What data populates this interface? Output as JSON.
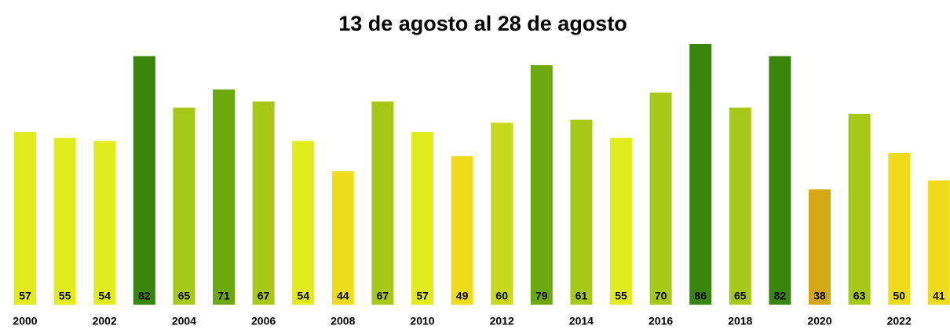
{
  "chart_data": {
    "type": "bar",
    "title": "13 de agosto al 28 de agosto",
    "categories": [
      "2000",
      null,
      "2002",
      null,
      "2004",
      null,
      "2006",
      null,
      "2008",
      null,
      "2010",
      null,
      "2012",
      null,
      "2014",
      null,
      "2016",
      null,
      "2018",
      null,
      "2020",
      null,
      "2022",
      null
    ],
    "values": [
      57,
      55,
      54,
      82,
      65,
      71,
      67,
      54,
      44,
      67,
      57,
      49,
      60,
      79,
      61,
      55,
      70,
      86,
      65,
      82,
      38,
      63,
      50,
      41
    ],
    "colors": [
      "#e2eb1c",
      "#e2eb1c",
      "#e2eb1c",
      "#38860c",
      "#a8c817",
      "#6ea80f",
      "#a8c817",
      "#e2eb1c",
      "#f0dc1a",
      "#a8c817",
      "#e2eb1c",
      "#f0dc1a",
      "#c8d81a",
      "#6ea80f",
      "#a8c817",
      "#e2eb1c",
      "#a8c817",
      "#38860c",
      "#a8c817",
      "#38860c",
      "#d4a814",
      "#a8c817",
      "#f0dc1a",
      "#f0dc1a"
    ]
  }
}
